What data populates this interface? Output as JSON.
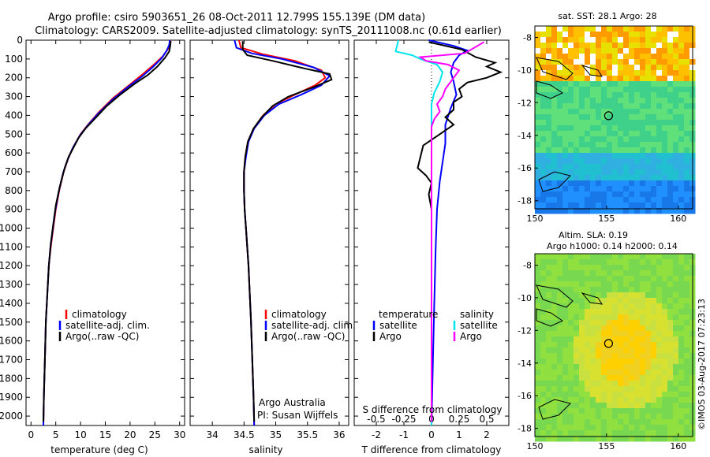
{
  "header": {
    "line1": "Argo profile: csiro 5903651_26 08-Oct-2011 12.799S 155.139E (DM data)",
    "line2": "Climatology: CARS2009. Satellite-adjusted climatology: synTS_20111008.nc (0.61d earlier)"
  },
  "colors": {
    "climatology": "#ff0000",
    "satellite": "#0000ff",
    "argo": "#000000",
    "argo_salinity": "#ff00ff",
    "satellite_salinity": "#00e5ee"
  },
  "chart_data": [
    {
      "type": "line",
      "id": "temperature",
      "xlabel": "temperature (deg C)",
      "ylabel": "",
      "xlim": [
        -1,
        31
      ],
      "ylim": [
        2050,
        0
      ],
      "xticks": [
        "0",
        "5",
        "10",
        "15",
        "20",
        "25",
        "30"
      ],
      "yticks": [
        "0",
        "100",
        "200",
        "300",
        "400",
        "500",
        "600",
        "700",
        "800",
        "900",
        "1000",
        "1100",
        "1200",
        "1300",
        "1400",
        "1500",
        "1600",
        "1700",
        "1800",
        "1900",
        "2000"
      ],
      "legend": [
        "climatology",
        "satellite-adj. clim.",
        "Argo(..raw -QC)"
      ],
      "series": [
        {
          "name": "climatology",
          "color": "#ff0000",
          "points": [
            [
              28.1,
              0
            ],
            [
              28.0,
              20
            ],
            [
              27.7,
              45
            ],
            [
              26.6,
              85
            ],
            [
              24.8,
              130
            ],
            [
              22.6,
              180
            ],
            [
              19.8,
              240
            ],
            [
              16.5,
              310
            ],
            [
              13.8,
              380
            ],
            [
              11.5,
              450
            ],
            [
              10.0,
              500
            ],
            [
              8.5,
              570
            ],
            [
              7.5,
              630
            ],
            [
              6.6,
              700
            ],
            [
              5.7,
              800
            ],
            [
              5.0,
              900
            ],
            [
              4.5,
              1000
            ],
            [
              4.0,
              1100
            ],
            [
              3.6,
              1200
            ],
            [
              3.3,
              1350
            ],
            [
              3.0,
              1500
            ],
            [
              2.8,
              1700
            ],
            [
              2.6,
              1900
            ],
            [
              2.5,
              2050
            ]
          ]
        },
        {
          "name": "satellite",
          "color": "#0000ff",
          "points": [
            [
              28.0,
              0
            ],
            [
              27.9,
              25
            ],
            [
              27.4,
              55
            ],
            [
              26.4,
              95
            ],
            [
              24.5,
              145
            ],
            [
              22.3,
              195
            ],
            [
              19.5,
              250
            ],
            [
              16.3,
              320
            ],
            [
              13.6,
              390
            ],
            [
              11.4,
              455
            ],
            [
              9.9,
              505
            ],
            [
              8.4,
              575
            ],
            [
              7.4,
              635
            ],
            [
              6.5,
              705
            ],
            [
              5.6,
              805
            ],
            [
              4.9,
              905
            ],
            [
              4.4,
              1005
            ],
            [
              3.9,
              1105
            ],
            [
              3.6,
              1200
            ],
            [
              3.3,
              1350
            ],
            [
              3.0,
              1500
            ],
            [
              2.8,
              1700
            ],
            [
              2.6,
              1900
            ],
            [
              2.5,
              2050
            ]
          ]
        },
        {
          "name": "Argo",
          "color": "#000000",
          "points": [
            [
              28.2,
              5
            ],
            [
              28.1,
              30
            ],
            [
              27.9,
              60
            ],
            [
              27.0,
              95
            ],
            [
              25.5,
              140
            ],
            [
              23.6,
              185
            ],
            [
              21.0,
              230
            ],
            [
              18.0,
              290
            ],
            [
              15.3,
              350
            ],
            [
              12.8,
              420
            ],
            [
              11.0,
              470
            ],
            [
              9.6,
              520
            ],
            [
              8.6,
              570
            ],
            [
              7.6,
              620
            ],
            [
              6.8,
              680
            ],
            [
              5.8,
              780
            ],
            [
              5.0,
              880
            ],
            [
              4.5,
              980
            ],
            [
              4.0,
              1080
            ],
            [
              3.6,
              1200
            ],
            [
              3.3,
              1350
            ],
            [
              3.0,
              1500
            ],
            [
              2.8,
              1700
            ],
            [
              2.6,
              1900
            ],
            [
              2.5,
              2030
            ]
          ]
        }
      ]
    },
    {
      "type": "line",
      "id": "salinity",
      "xlabel": "salinity",
      "xlim": [
        33.65,
        36.15
      ],
      "ylim": [
        2050,
        0
      ],
      "xticks": [
        "34",
        "34.5",
        "35",
        "35.5",
        "36"
      ],
      "legend": [
        "climatology",
        "satellite-adj. clim.",
        "Argo(..raw -QC)"
      ],
      "annotation": [
        "Argo Australia",
        "PI: Susan Wijffels"
      ],
      "series": [
        {
          "name": "climatology",
          "color": "#ff0000",
          "points": [
            [
              34.42,
              0
            ],
            [
              34.45,
              40
            ],
            [
              34.8,
              75
            ],
            [
              35.3,
              110
            ],
            [
              35.72,
              160
            ],
            [
              35.78,
              200
            ],
            [
              35.62,
              240
            ],
            [
              35.3,
              290
            ],
            [
              35.0,
              340
            ],
            [
              34.8,
              400
            ],
            [
              34.65,
              470
            ],
            [
              34.56,
              540
            ],
            [
              34.52,
              620
            ],
            [
              34.5,
              700
            ],
            [
              34.5,
              800
            ],
            [
              34.51,
              900
            ],
            [
              34.53,
              1000
            ],
            [
              34.55,
              1100
            ],
            [
              34.57,
              1200
            ],
            [
              34.59,
              1350
            ],
            [
              34.61,
              1500
            ],
            [
              34.63,
              1700
            ],
            [
              34.65,
              1900
            ],
            [
              34.66,
              2050
            ]
          ]
        },
        {
          "name": "satellite",
          "color": "#0000ff",
          "points": [
            [
              34.35,
              0
            ],
            [
              34.38,
              40
            ],
            [
              34.62,
              70
            ],
            [
              35.1,
              100
            ],
            [
              35.6,
              145
            ],
            [
              35.85,
              190
            ],
            [
              35.72,
              240
            ],
            [
              35.4,
              290
            ],
            [
              35.05,
              340
            ],
            [
              34.82,
              400
            ],
            [
              34.66,
              470
            ],
            [
              34.57,
              540
            ],
            [
              34.53,
              620
            ],
            [
              34.5,
              700
            ],
            [
              34.5,
              800
            ],
            [
              34.51,
              900
            ],
            [
              34.53,
              1000
            ],
            [
              34.55,
              1100
            ],
            [
              34.57,
              1200
            ],
            [
              34.59,
              1350
            ],
            [
              34.61,
              1500
            ],
            [
              34.63,
              1700
            ],
            [
              34.65,
              1900
            ],
            [
              34.66,
              2050
            ]
          ]
        },
        {
          "name": "Argo",
          "color": "#000000",
          "points": [
            [
              34.48,
              5
            ],
            [
              34.48,
              50
            ],
            [
              34.55,
              80
            ],
            [
              34.95,
              110
            ],
            [
              35.45,
              150
            ],
            [
              35.85,
              180
            ],
            [
              35.88,
              210
            ],
            [
              35.6,
              250
            ],
            [
              35.2,
              300
            ],
            [
              34.95,
              350
            ],
            [
              34.78,
              410
            ],
            [
              34.65,
              470
            ],
            [
              34.56,
              540
            ],
            [
              34.52,
              620
            ],
            [
              34.5,
              700
            ],
            [
              34.5,
              800
            ],
            [
              34.51,
              900
            ],
            [
              34.53,
              1000
            ],
            [
              34.55,
              1100
            ],
            [
              34.57,
              1200
            ],
            [
              34.59,
              1350
            ],
            [
              34.61,
              1500
            ],
            [
              34.63,
              1700
            ],
            [
              34.65,
              1900
            ],
            [
              34.66,
              2030
            ]
          ]
        }
      ]
    },
    {
      "type": "line",
      "id": "difference",
      "xlabel": "T difference from climatology",
      "xlabel_top": "S difference from climatology",
      "xlim_T": [
        -2.8,
        2.8
      ],
      "xticks": [
        "-2",
        "-1",
        "0",
        "1",
        "2"
      ],
      "xticks_S": [
        "-0.5",
        "-0.25",
        "0",
        "0.25",
        "0.5"
      ],
      "ylim": [
        2050,
        0
      ],
      "legend_left_title": "temperature",
      "legend_right_title": "salinity",
      "legend_left": [
        "satellite",
        "Argo"
      ],
      "legend_right": [
        "satellite",
        "Argo"
      ],
      "series": [
        {
          "name": "T satellite",
          "color": "#0000ff",
          "points": [
            [
              -0.1,
              0
            ],
            [
              0.8,
              30
            ],
            [
              1.3,
              55
            ],
            [
              1.0,
              80
            ],
            [
              0.8,
              120
            ],
            [
              0.7,
              170
            ],
            [
              0.8,
              220
            ],
            [
              0.9,
              290
            ],
            [
              0.7,
              360
            ],
            [
              0.5,
              450
            ],
            [
              0.5,
              550
            ],
            [
              0.4,
              650
            ],
            [
              0.3,
              750
            ],
            [
              0.2,
              900
            ],
            [
              0.15,
              1100
            ],
            [
              0.1,
              1400
            ],
            [
              0.05,
              1700
            ],
            [
              0.0,
              2050
            ]
          ]
        },
        {
          "name": "T Argo",
          "color": "#000000",
          "points": [
            [
              -0.1,
              10
            ],
            [
              1.1,
              50
            ],
            [
              1.6,
              90
            ],
            [
              2.3,
              120
            ],
            [
              2.0,
              140
            ],
            [
              2.5,
              170
            ],
            [
              2.0,
              200
            ],
            [
              1.3,
              225
            ],
            [
              1.0,
              260
            ],
            [
              1.1,
              300
            ],
            [
              0.8,
              330
            ],
            [
              0.8,
              370
            ],
            [
              0.5,
              410
            ],
            [
              0.8,
              450
            ],
            [
              0.3,
              500
            ],
            [
              -0.3,
              560
            ],
            [
              -0.4,
              620
            ],
            [
              -0.5,
              680
            ],
            [
              -0.2,
              720
            ],
            [
              0.0,
              760
            ],
            [
              -0.1,
              820
            ],
            [
              0.0,
              900
            ],
            [
              0.0,
              1100
            ],
            [
              0.0,
              1400
            ],
            [
              0.0,
              1700
            ],
            [
              0.0,
              2030
            ]
          ]
        },
        {
          "name": "S satellite",
          "color": "#00e5ee",
          "points": [
            [
              -1.2,
              0
            ],
            [
              -1.3,
              60
            ],
            [
              -0.7,
              80
            ],
            [
              -0.4,
              100
            ],
            [
              0.2,
              130
            ],
            [
              0.4,
              170
            ],
            [
              0.3,
              220
            ],
            [
              0.1,
              280
            ],
            [
              0.0,
              340
            ],
            [
              0.0,
              500
            ],
            [
              0.0,
              800
            ],
            [
              0.0,
              1200
            ],
            [
              0.0,
              1600
            ],
            [
              0.0,
              2050
            ]
          ]
        },
        {
          "name": "S Argo",
          "color": "#ff00ff",
          "points": [
            [
              1.9,
              10
            ],
            [
              1.2,
              70
            ],
            [
              -0.4,
              90
            ],
            [
              -0.2,
              110
            ],
            [
              0.6,
              130
            ],
            [
              1.0,
              160
            ],
            [
              0.8,
              200
            ],
            [
              0.5,
              260
            ],
            [
              0.4,
              300
            ],
            [
              0.2,
              340
            ],
            [
              0.3,
              380
            ],
            [
              0.1,
              420
            ],
            [
              0.0,
              460
            ],
            [
              0.0,
              550
            ],
            [
              0.0,
              650
            ],
            [
              0.0,
              800
            ],
            [
              0.0,
              1200
            ],
            [
              0.0,
              1600
            ],
            [
              0.0,
              2030
            ]
          ]
        }
      ]
    },
    {
      "type": "heatmap",
      "id": "sst-map",
      "title": "sat. SST: 28.1  Argo: 28",
      "xlim": [
        150,
        161
      ],
      "ylim": [
        -18.5,
        -7.3
      ],
      "xticks": [
        "150",
        "155",
        "160"
      ],
      "yticks": [
        "-8",
        "-10",
        "-12",
        "-14",
        "-16",
        "-18"
      ],
      "marker": {
        "lon": 155.139,
        "lat": -12.799
      }
    },
    {
      "type": "heatmap",
      "id": "sla-map",
      "title_line1": "Altim. SLA: 0.19",
      "title_line2": "Argo h1000: 0.14 h2000: 0.14",
      "xlim": [
        150,
        161
      ],
      "ylim": [
        -18.5,
        -7.3
      ],
      "xticks": [
        "150",
        "155",
        "160"
      ],
      "yticks": [
        "-8",
        "-10",
        "-12",
        "-14",
        "-16",
        "-18"
      ],
      "marker": {
        "lon": 155.139,
        "lat": -12.799
      }
    }
  ],
  "credit": "©IMOS 03-Aug-2017 07:23:13"
}
